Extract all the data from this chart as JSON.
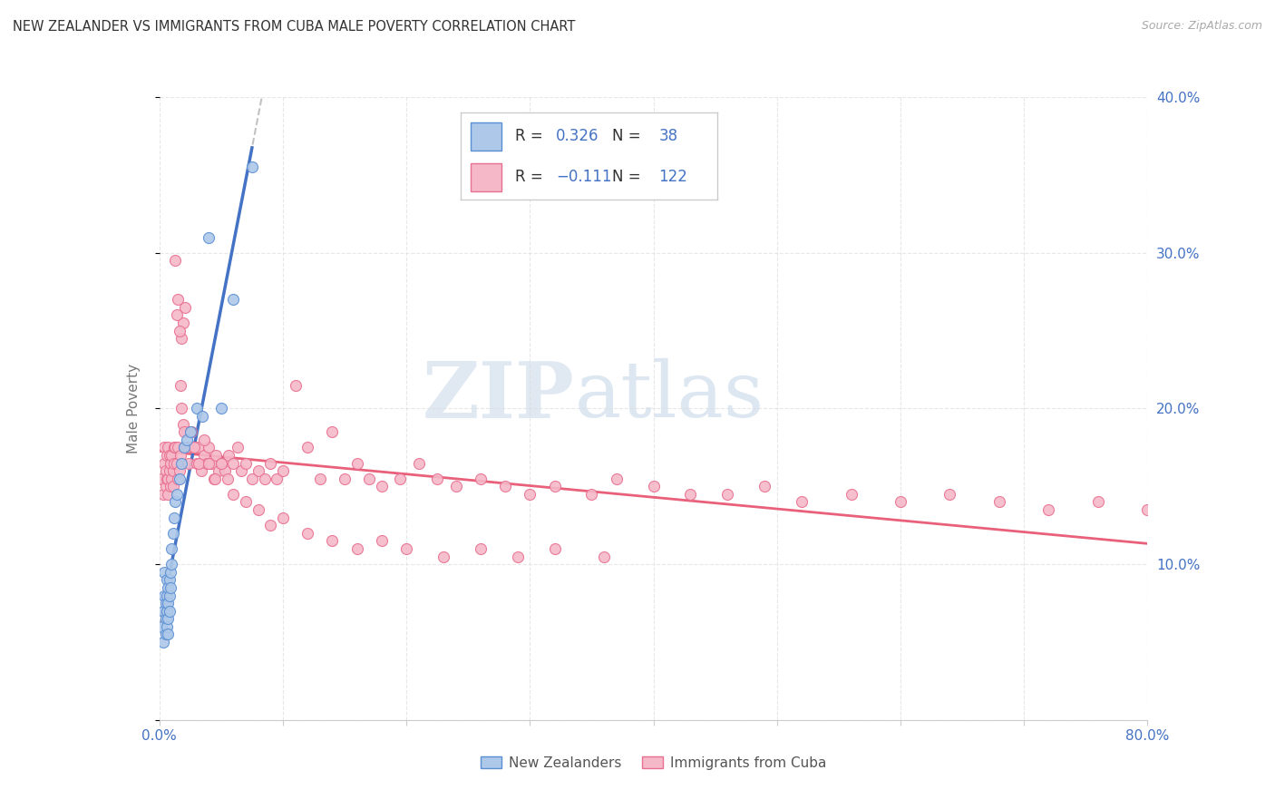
{
  "title": "NEW ZEALANDER VS IMMIGRANTS FROM CUBA MALE POVERTY CORRELATION CHART",
  "source": "Source: ZipAtlas.com",
  "ylabel": "Male Poverty",
  "xlim": [
    0.0,
    0.8
  ],
  "ylim": [
    0.0,
    0.4
  ],
  "xticks": [
    0.0,
    0.1,
    0.2,
    0.3,
    0.4,
    0.5,
    0.6,
    0.7,
    0.8
  ],
  "yticks": [
    0.0,
    0.1,
    0.2,
    0.3,
    0.4
  ],
  "R_nz": 0.326,
  "N_nz": 38,
  "R_cuba": -0.111,
  "N_cuba": 122,
  "color_nz_fill": "#adc8e8",
  "color_cuba_fill": "#f5b8c8",
  "color_nz_edge": "#5b8fd4",
  "color_cuba_edge": "#e87090",
  "color_nz_line": "#4472C4",
  "color_cuba_line": "#e8607a",
  "color_text_blue": "#4472C4",
  "color_text_dark": "#444444",
  "color_grid": "#dddddd",
  "watermark_zip": "ZIP",
  "watermark_atlas": "atlas",
  "legend_label_nz": "New Zealanders",
  "legend_label_cuba": "Immigrants from Cuba",
  "nz_x": [
    0.002,
    0.003,
    0.003,
    0.004,
    0.004,
    0.005,
    0.005,
    0.005,
    0.006,
    0.006,
    0.006,
    0.006,
    0.007,
    0.007,
    0.007,
    0.007,
    0.008,
    0.008,
    0.008,
    0.009,
    0.009,
    0.01,
    0.01,
    0.011,
    0.012,
    0.013,
    0.014,
    0.016,
    0.018,
    0.02,
    0.022,
    0.025,
    0.03,
    0.035,
    0.04,
    0.05,
    0.06,
    0.075
  ],
  "nz_y": [
    0.06,
    0.05,
    0.07,
    0.08,
    0.095,
    0.055,
    0.065,
    0.075,
    0.06,
    0.07,
    0.08,
    0.09,
    0.055,
    0.065,
    0.075,
    0.085,
    0.07,
    0.08,
    0.09,
    0.085,
    0.095,
    0.1,
    0.11,
    0.12,
    0.13,
    0.14,
    0.145,
    0.155,
    0.165,
    0.175,
    0.18,
    0.185,
    0.2,
    0.195,
    0.31,
    0.2,
    0.27,
    0.355
  ],
  "cuba_x": [
    0.002,
    0.003,
    0.004,
    0.004,
    0.005,
    0.005,
    0.006,
    0.006,
    0.007,
    0.007,
    0.007,
    0.008,
    0.008,
    0.009,
    0.009,
    0.01,
    0.01,
    0.011,
    0.011,
    0.012,
    0.012,
    0.013,
    0.014,
    0.015,
    0.015,
    0.016,
    0.017,
    0.018,
    0.019,
    0.02,
    0.021,
    0.022,
    0.023,
    0.024,
    0.025,
    0.026,
    0.028,
    0.03,
    0.032,
    0.034,
    0.036,
    0.038,
    0.04,
    0.042,
    0.044,
    0.046,
    0.048,
    0.05,
    0.053,
    0.056,
    0.06,
    0.063,
    0.066,
    0.07,
    0.075,
    0.08,
    0.085,
    0.09,
    0.095,
    0.1,
    0.11,
    0.12,
    0.13,
    0.14,
    0.15,
    0.16,
    0.17,
    0.18,
    0.195,
    0.21,
    0.225,
    0.24,
    0.26,
    0.28,
    0.3,
    0.32,
    0.35,
    0.37,
    0.4,
    0.43,
    0.46,
    0.49,
    0.52,
    0.56,
    0.6,
    0.64,
    0.68,
    0.72,
    0.76,
    0.8,
    0.013,
    0.014,
    0.015,
    0.016,
    0.017,
    0.018,
    0.019,
    0.02,
    0.022,
    0.025,
    0.028,
    0.032,
    0.036,
    0.04,
    0.045,
    0.05,
    0.055,
    0.06,
    0.07,
    0.08,
    0.09,
    0.1,
    0.12,
    0.14,
    0.16,
    0.18,
    0.2,
    0.23,
    0.26,
    0.29,
    0.32,
    0.36
  ],
  "cuba_y": [
    0.155,
    0.145,
    0.165,
    0.175,
    0.15,
    0.16,
    0.155,
    0.17,
    0.145,
    0.155,
    0.175,
    0.16,
    0.17,
    0.15,
    0.165,
    0.155,
    0.17,
    0.16,
    0.15,
    0.165,
    0.175,
    0.175,
    0.165,
    0.155,
    0.175,
    0.16,
    0.17,
    0.245,
    0.255,
    0.175,
    0.265,
    0.185,
    0.175,
    0.165,
    0.175,
    0.185,
    0.175,
    0.165,
    0.175,
    0.16,
    0.17,
    0.165,
    0.175,
    0.165,
    0.155,
    0.17,
    0.16,
    0.165,
    0.16,
    0.17,
    0.165,
    0.175,
    0.16,
    0.165,
    0.155,
    0.16,
    0.155,
    0.165,
    0.155,
    0.16,
    0.215,
    0.175,
    0.155,
    0.185,
    0.155,
    0.165,
    0.155,
    0.15,
    0.155,
    0.165,
    0.155,
    0.15,
    0.155,
    0.15,
    0.145,
    0.15,
    0.145,
    0.155,
    0.15,
    0.145,
    0.145,
    0.15,
    0.14,
    0.145,
    0.14,
    0.145,
    0.14,
    0.135,
    0.14,
    0.135,
    0.295,
    0.26,
    0.27,
    0.25,
    0.215,
    0.2,
    0.19,
    0.185,
    0.175,
    0.185,
    0.175,
    0.165,
    0.18,
    0.165,
    0.155,
    0.165,
    0.155,
    0.145,
    0.14,
    0.135,
    0.125,
    0.13,
    0.12,
    0.115,
    0.11,
    0.115,
    0.11,
    0.105,
    0.11,
    0.105,
    0.11,
    0.105
  ]
}
